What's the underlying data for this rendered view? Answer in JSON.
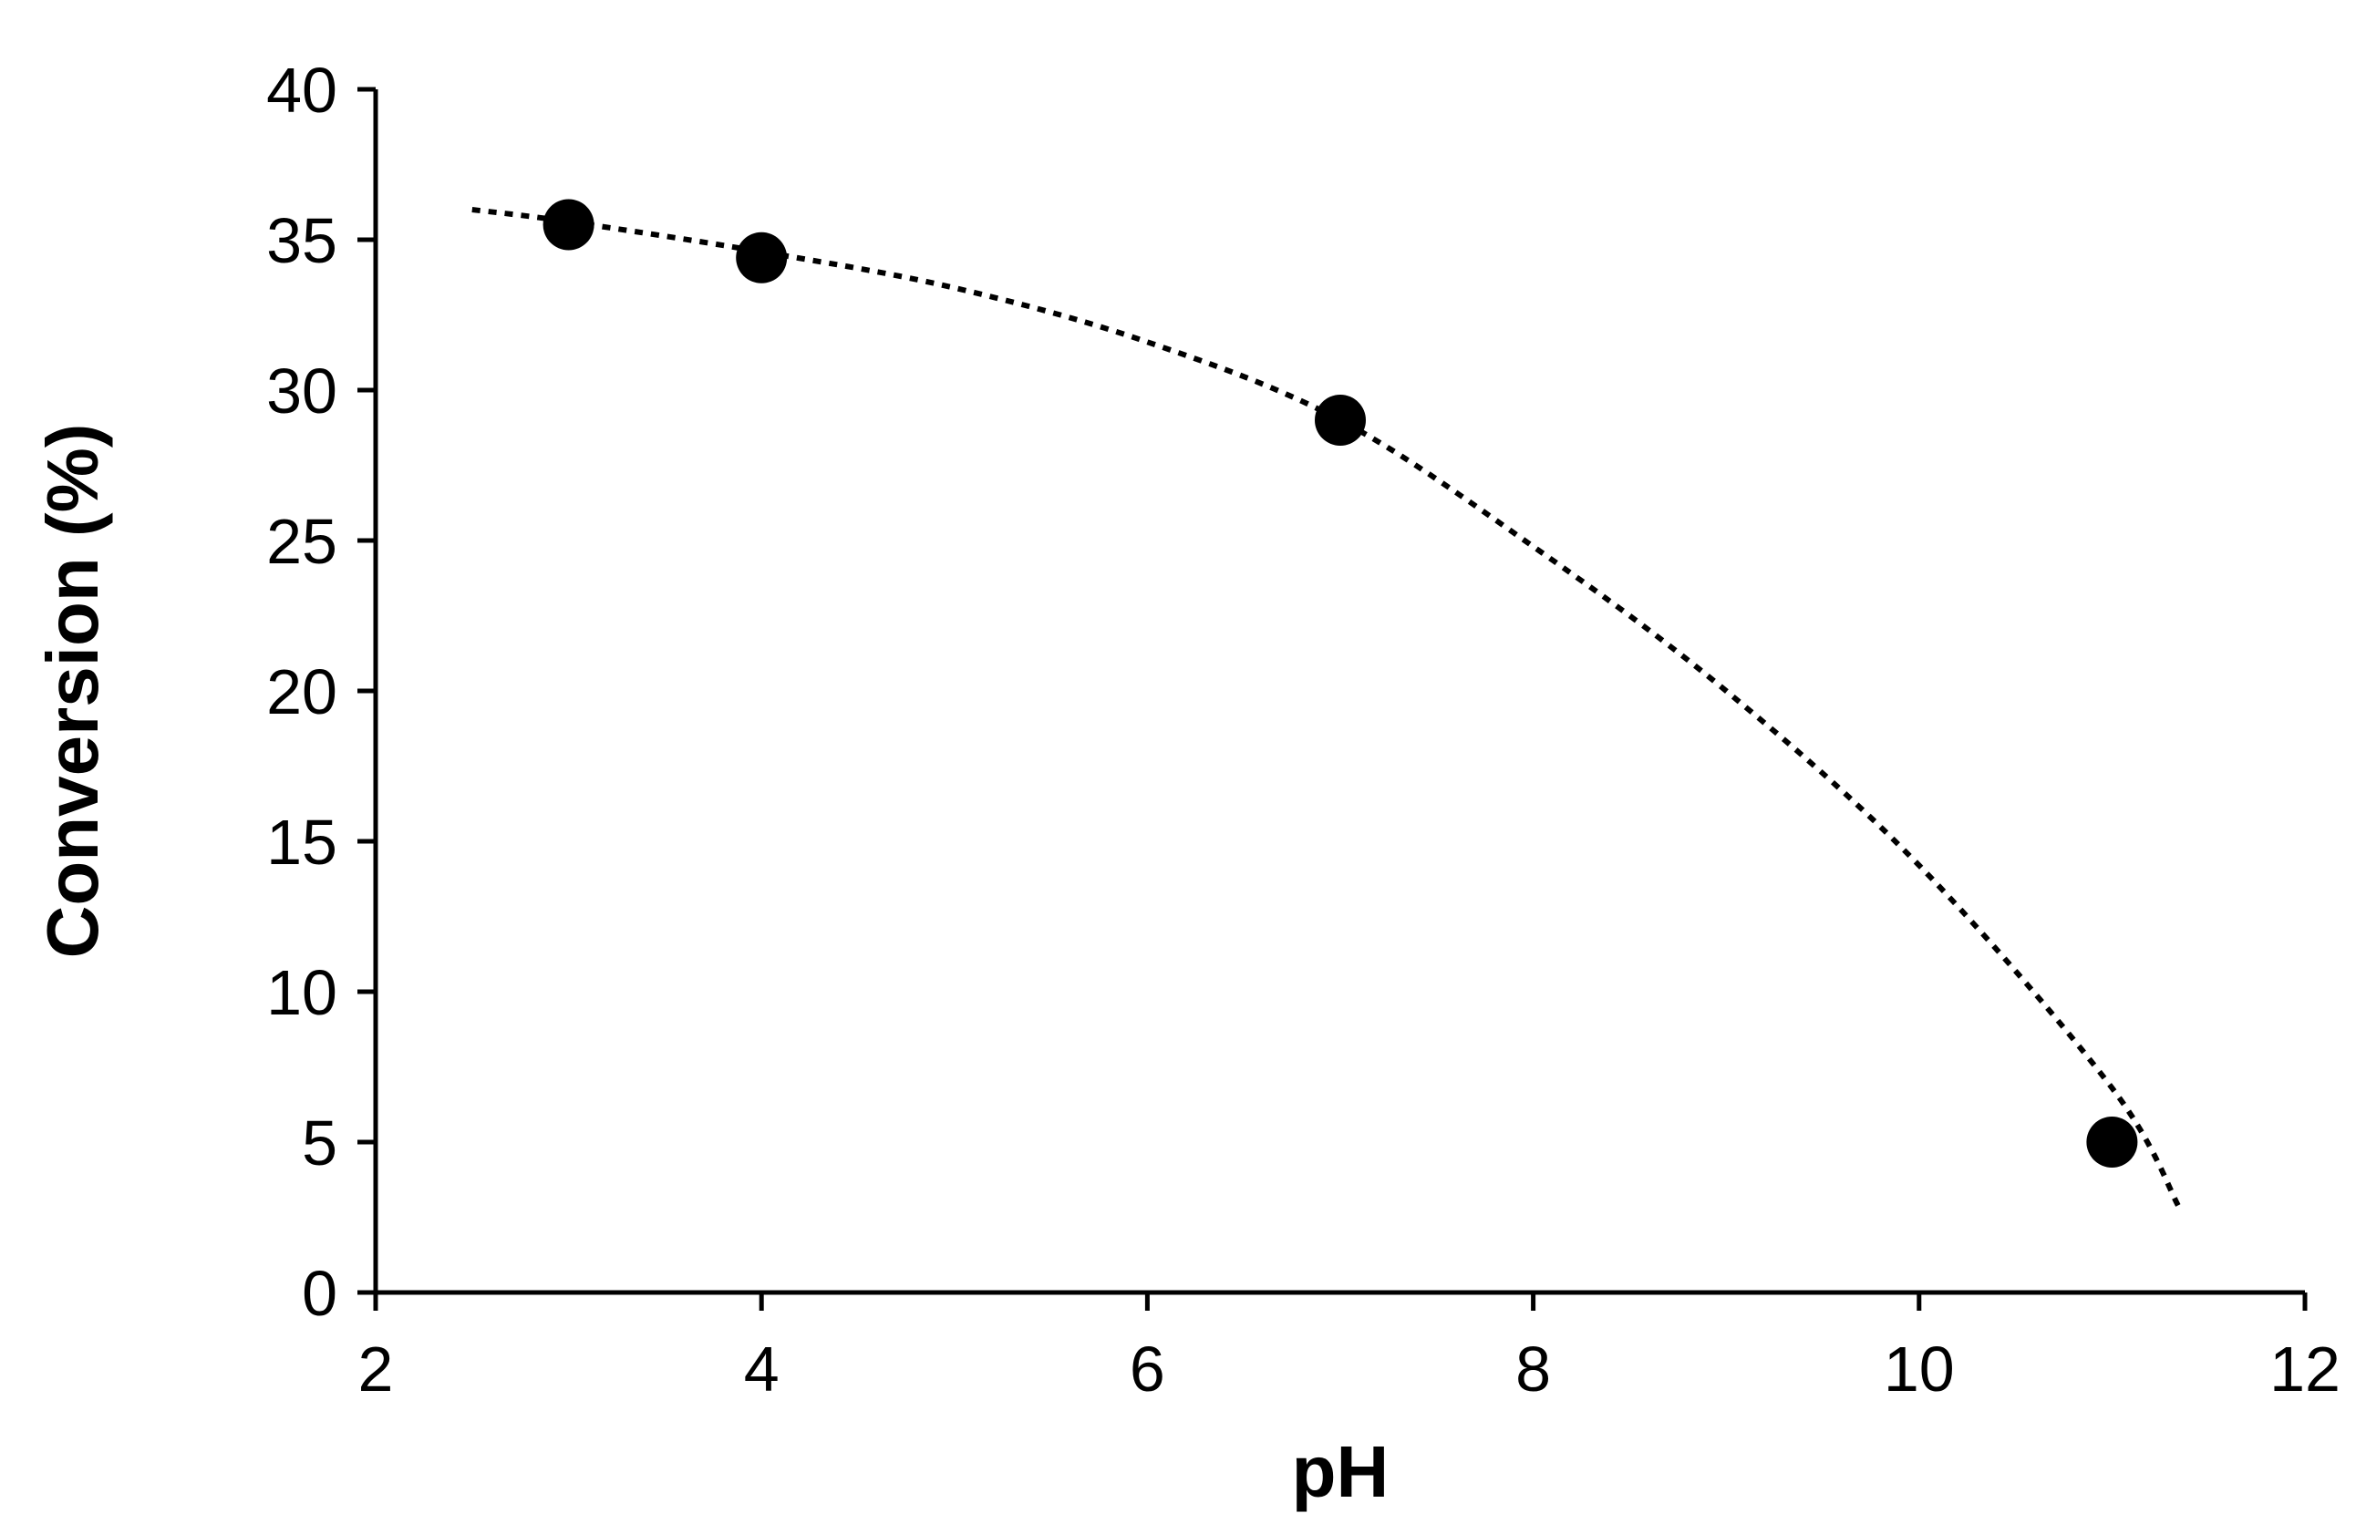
{
  "chart_data": {
    "type": "scatter",
    "title": "",
    "xlabel": "pH",
    "ylabel": "Conversion (%)",
    "xlim": [
      2,
      12
    ],
    "ylim": [
      0,
      40
    ],
    "xticks": [
      2,
      4,
      6,
      8,
      10,
      12
    ],
    "yticks": [
      0,
      5,
      10,
      15,
      20,
      25,
      30,
      35,
      40
    ],
    "grid": false,
    "legend": "none",
    "series": [
      {
        "x": [
          3,
          4,
          7,
          11
        ],
        "y": [
          35.5,
          34.4,
          29.0,
          5.0
        ],
        "marker": "circle",
        "color": "#000000"
      }
    ],
    "trendline": {
      "style": "dotted",
      "color": "#000000",
      "x": [
        2.5,
        3,
        4,
        5,
        6,
        7,
        8,
        9,
        10,
        11,
        11.35
      ],
      "y": [
        36.0,
        35.6,
        34.6,
        33.4,
        31.6,
        29.0,
        24.8,
        20.0,
        14.2,
        6.8,
        2.8
      ]
    }
  }
}
